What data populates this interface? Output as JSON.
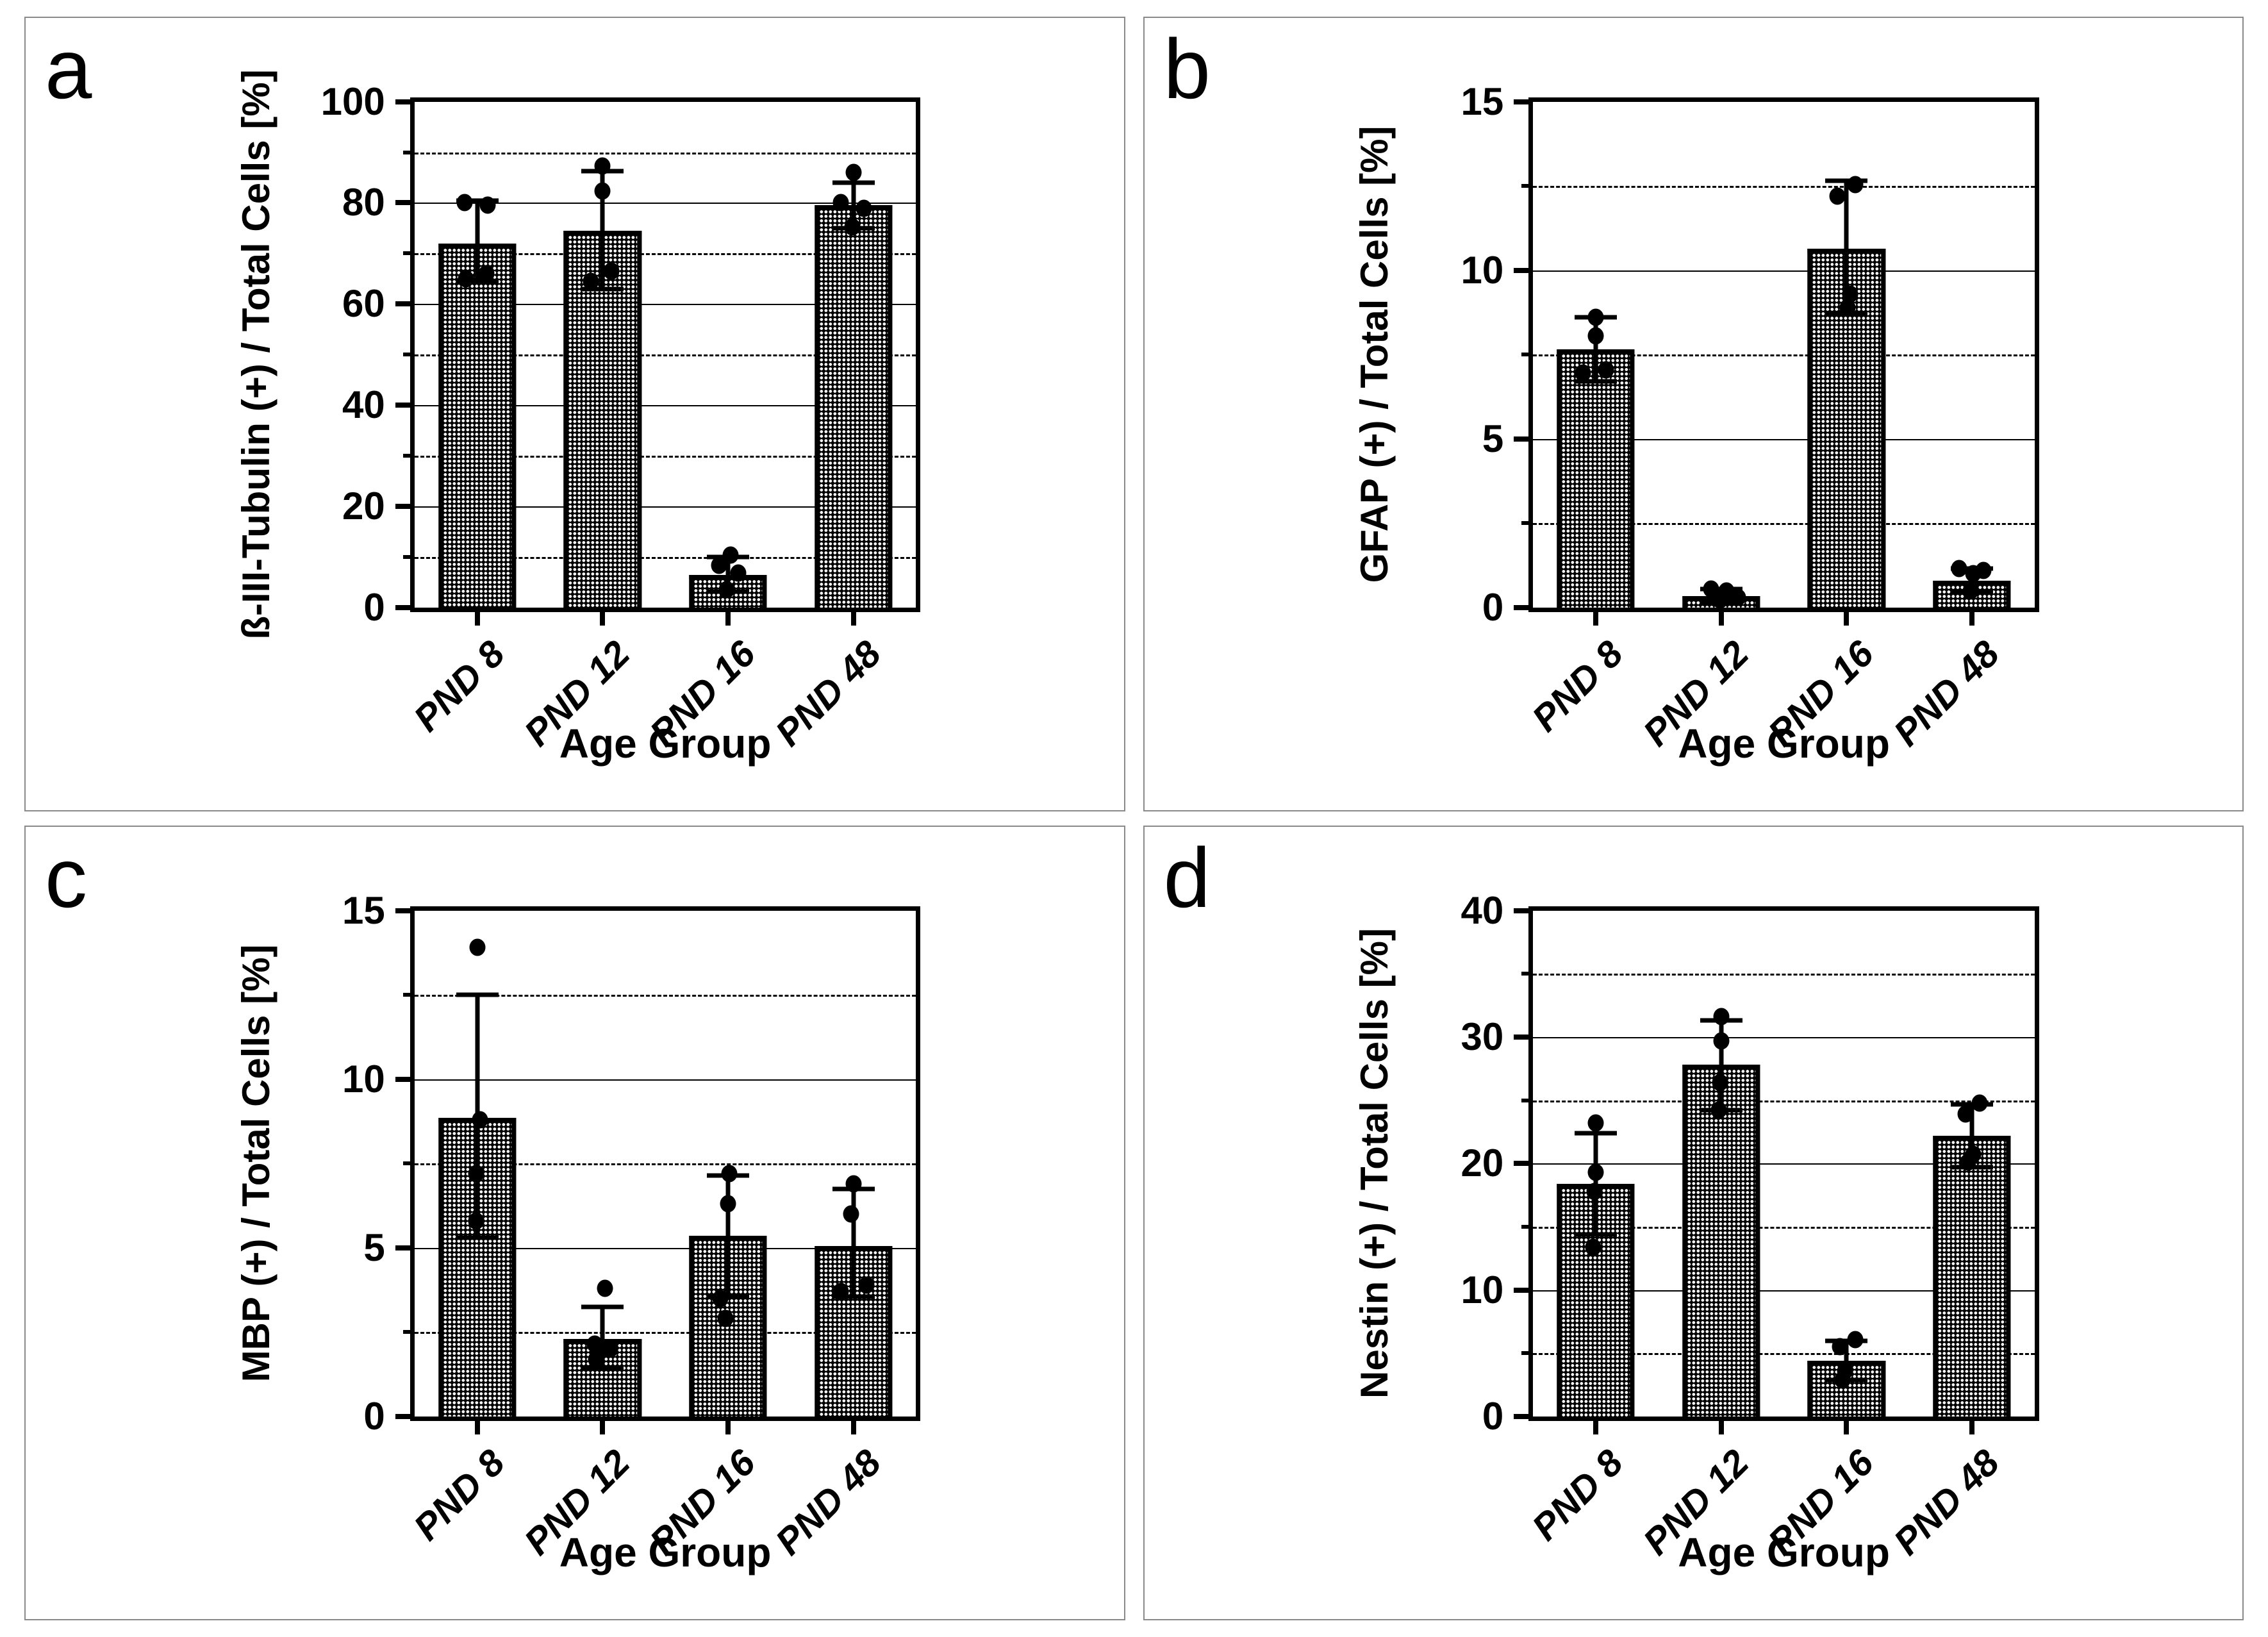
{
  "colors": {
    "background": "#ffffff",
    "panel_border": "#8a8a8a",
    "axis": "#000000",
    "gridline": "#000000",
    "bar_fill": "#000000",
    "bar_pattern_dot": "#ffffff"
  },
  "chart_data": [
    {
      "type": "bar",
      "panel_label": "a",
      "ylabel": "ß-III-Tubulin (+) / Total Cells [%]",
      "xlabel": "Age Group",
      "categories": [
        "PND 8",
        "PND 12",
        "PND 16",
        "PND 48"
      ],
      "values": [
        72,
        74.5,
        6.5,
        79.5
      ],
      "error_low": [
        64.5,
        63,
        3.2,
        75
      ],
      "error_high": [
        80.5,
        86.3,
        10,
        84
      ],
      "points": [
        [
          80,
          79.5,
          66,
          65
        ],
        [
          87.3,
          82.3,
          66.5,
          64.5
        ],
        [
          10.4,
          8.3,
          6.9,
          3.6
        ],
        [
          86,
          80,
          78.9,
          75.3
        ]
      ],
      "point_dx": [
        [
          -20,
          16,
          14,
          -18
        ],
        [
          0,
          0,
          14,
          -18
        ],
        [
          4,
          -14,
          16,
          -2
        ],
        [
          0,
          -20,
          16,
          -2
        ]
      ],
      "ylim": [
        0,
        100
      ],
      "ticks_major": [
        0,
        20,
        40,
        60,
        80,
        100
      ],
      "gridlines_solid": [
        20,
        40,
        60,
        80
      ],
      "gridlines_dashed": [
        10,
        30,
        50,
        70,
        90
      ],
      "grid": "on",
      "legend": "none"
    },
    {
      "type": "bar",
      "panel_label": "b",
      "ylabel": "GFAP (+) / Total Cells [%]",
      "xlabel": "Age Group",
      "categories": [
        "PND 8",
        "PND 12",
        "PND 16",
        "PND 48"
      ],
      "values": [
        7.65,
        0.35,
        10.65,
        0.8
      ],
      "error_low": [
        6.7,
        0.15,
        8.7,
        0.45
      ],
      "error_high": [
        8.6,
        0.55,
        12.65,
        1.15
      ],
      "points": [
        [
          8.6,
          8.05,
          7.05,
          6.95
        ],
        [
          0.55,
          0.5,
          0.3,
          0.22
        ],
        [
          12.55,
          12.2,
          9.3,
          8.9
        ],
        [
          1.15,
          1.1,
          1.0,
          0.5
        ]
      ],
      "point_dx": [
        [
          0,
          0,
          16,
          -20
        ],
        [
          -16,
          8,
          26,
          -2
        ],
        [
          14,
          -14,
          6,
          2
        ],
        [
          -20,
          18,
          2,
          -2
        ]
      ],
      "ylim": [
        0,
        15
      ],
      "ticks_major": [
        0,
        5,
        10,
        15
      ],
      "gridlines_solid": [
        5,
        10
      ],
      "gridlines_dashed": [
        2.5,
        7.5,
        12.5
      ],
      "grid": "on",
      "legend": "none"
    },
    {
      "type": "bar",
      "panel_label": "c",
      "ylabel": "MBP (+) / Total Cells [%]",
      "xlabel": "Age Group",
      "categories": [
        "PND 8",
        "PND 12",
        "PND 16",
        "PND 48"
      ],
      "values": [
        8.85,
        2.3,
        5.35,
        5.05
      ],
      "error_low": [
        5.3,
        1.45,
        3.55,
        3.55
      ],
      "error_high": [
        12.5,
        3.25,
        7.15,
        6.75
      ],
      "points": [
        [
          13.9,
          8.8,
          7.2,
          5.8
        ],
        [
          3.8,
          2.15,
          2.0,
          1.7
        ],
        [
          7.2,
          6.3,
          3.5,
          2.9
        ],
        [
          6.9,
          6.0,
          3.9,
          3.7
        ]
      ],
      "point_dx": [
        [
          0,
          4,
          -2,
          -2
        ],
        [
          4,
          -12,
          12,
          -10
        ],
        [
          2,
          0,
          -12,
          -4
        ],
        [
          0,
          -4,
          20,
          -20
        ]
      ],
      "ylim": [
        0,
        15
      ],
      "ticks_major": [
        0,
        5,
        10,
        15
      ],
      "gridlines_solid": [
        5,
        10
      ],
      "gridlines_dashed": [
        2.5,
        7.5,
        12.5
      ],
      "grid": "on",
      "legend": "none"
    },
    {
      "type": "bar",
      "panel_label": "d",
      "ylabel": "Nestin (+) / Total Cells [%]",
      "xlabel": "Age Group",
      "categories": [
        "PND 8",
        "PND 12",
        "PND 16",
        "PND 48"
      ],
      "values": [
        18.4,
        27.8,
        4.4,
        22.2
      ],
      "error_low": [
        14.4,
        24.2,
        2.9,
        19.7
      ],
      "error_high": [
        22.4,
        31.3,
        6.0,
        24.7
      ],
      "points": [
        [
          23.2,
          19.3,
          17.8,
          13.4
        ],
        [
          31.6,
          29.7,
          26.4,
          24.2
        ],
        [
          6.1,
          5.5,
          3.6,
          2.9
        ],
        [
          24.8,
          23.9,
          20.7,
          20.1
        ]
      ],
      "point_dx": [
        [
          0,
          0,
          -2,
          -4
        ],
        [
          0,
          0,
          -2,
          -4
        ],
        [
          14,
          -10,
          -2,
          -6
        ],
        [
          12,
          -10,
          2,
          -6
        ]
      ],
      "ylim": [
        0,
        40
      ],
      "ticks_major": [
        0,
        10,
        20,
        30,
        40
      ],
      "gridlines_solid": [
        10,
        20,
        30
      ],
      "gridlines_dashed": [
        5,
        15,
        25,
        35
      ],
      "grid": "on",
      "legend": "none"
    }
  ]
}
